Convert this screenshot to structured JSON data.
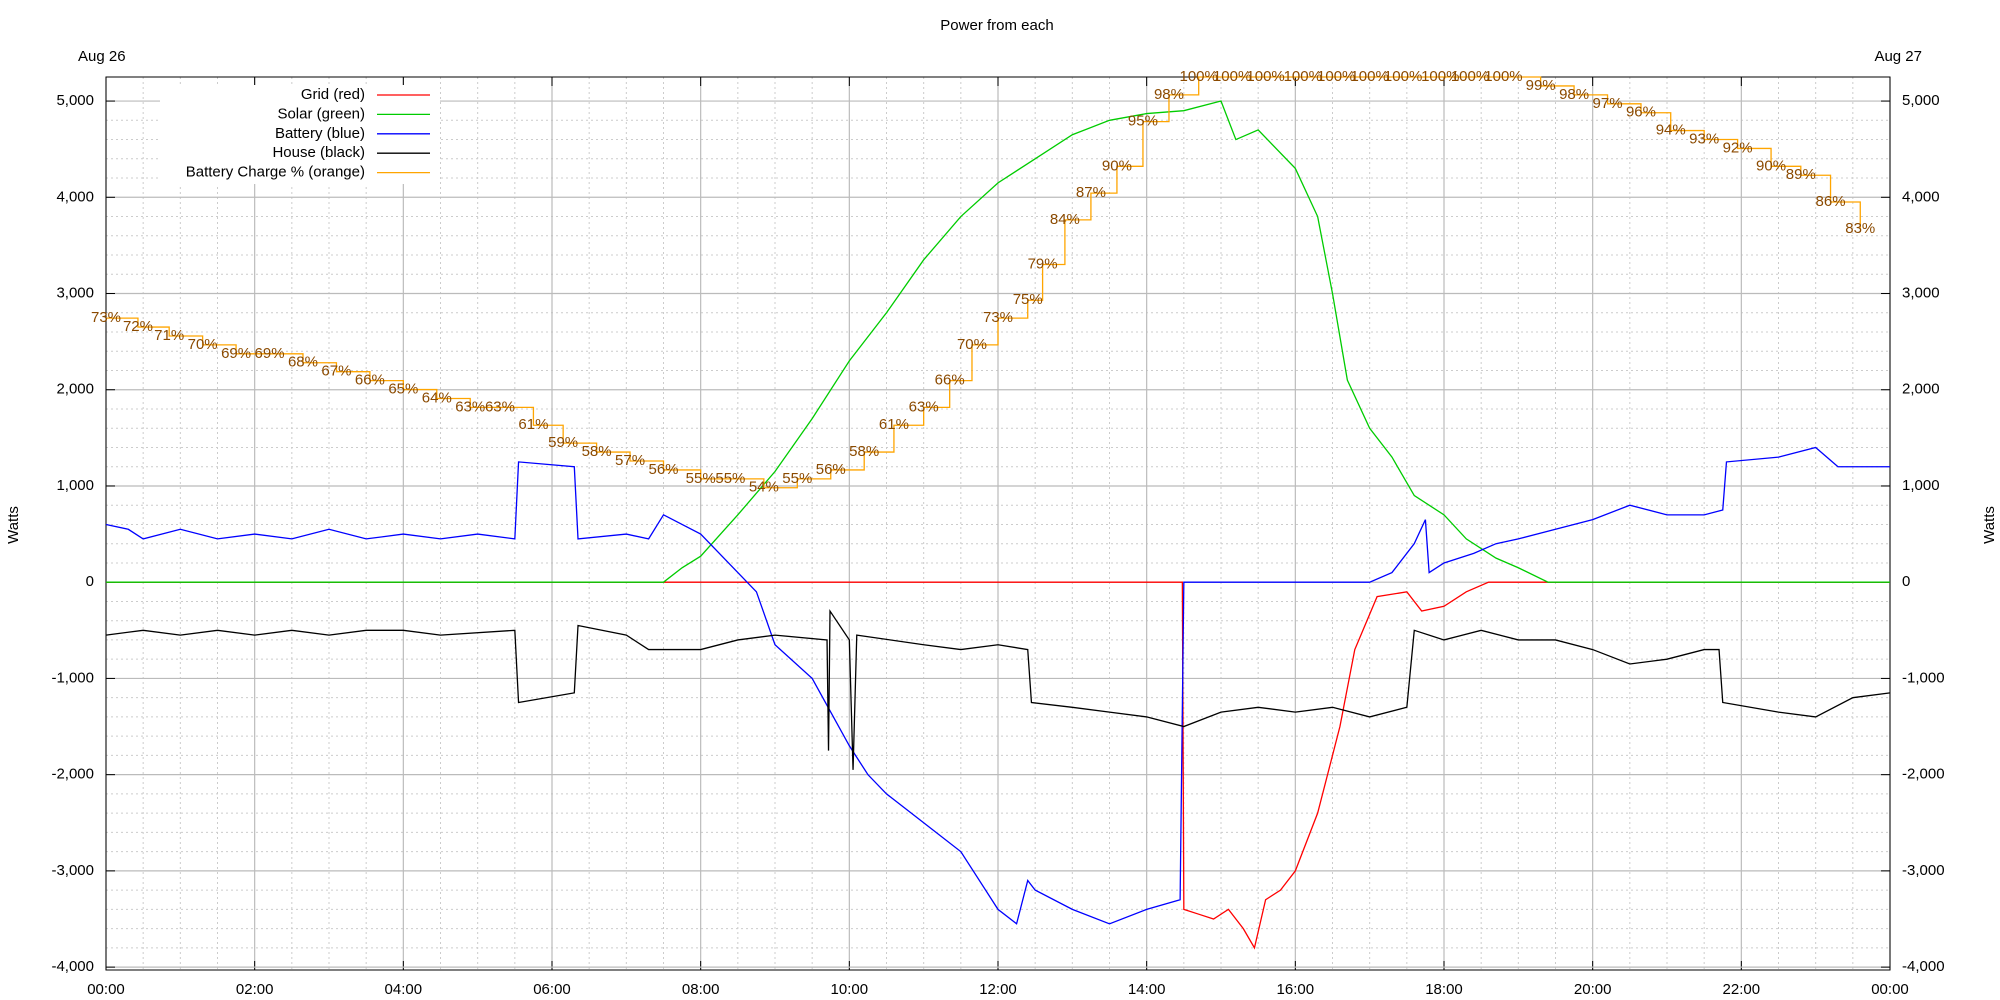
{
  "chart_data": {
    "type": "line",
    "title": "Power from each",
    "date_left": "Aug 26",
    "date_right": "Aug 27",
    "ylabel": "Watts",
    "y2label": "Watts",
    "grid": true,
    "legend": "top-left",
    "xlim": [
      0,
      24
    ],
    "xticks": [
      {
        "value": 0,
        "label": "00:00"
      },
      {
        "value": 2,
        "label": "02:00"
      },
      {
        "value": 4,
        "label": "04:00"
      },
      {
        "value": 6,
        "label": "06:00"
      },
      {
        "value": 8,
        "label": "08:00"
      },
      {
        "value": 10,
        "label": "10:00"
      },
      {
        "value": 12,
        "label": "12:00"
      },
      {
        "value": 14,
        "label": "14:00"
      },
      {
        "value": 16,
        "label": "16:00"
      },
      {
        "value": 18,
        "label": "18:00"
      },
      {
        "value": 20,
        "label": "20:00"
      },
      {
        "value": 22,
        "label": "22:00"
      },
      {
        "value": 24,
        "label": "00:00"
      }
    ],
    "ylim": [
      -4030,
      5250
    ],
    "yticks": [
      {
        "value": -4000,
        "label": "-4,000"
      },
      {
        "value": -3000,
        "label": "-3,000"
      },
      {
        "value": -2000,
        "label": "-2,000"
      },
      {
        "value": -1000,
        "label": "-1,000"
      },
      0,
      {
        "value": 1000,
        "label": "1,000"
      },
      {
        "value": 2000,
        "label": "2,000"
      },
      {
        "value": 3000,
        "label": "3,000"
      },
      {
        "value": 4000,
        "label": "4,000"
      },
      {
        "value": 5000,
        "label": "5,000"
      }
    ],
    "y2lim": [
      -4030,
      5250
    ],
    "y2ticks": [
      {
        "value": -4000,
        "label": "-4,000"
      },
      {
        "value": -3000,
        "label": "-3,000"
      },
      {
        "value": -2000,
        "label": "-2,000"
      },
      {
        "value": -1000,
        "label": "-1,000"
      },
      0,
      {
        "value": 1000,
        "label": "1,000"
      },
      {
        "value": 2000,
        "label": "2,000"
      },
      {
        "value": 3000,
        "label": "3,000"
      },
      {
        "value": 4000,
        "label": "4,000"
      },
      {
        "value": 5000,
        "label": "5,000"
      }
    ],
    "y3lim": [
      0,
      100
    ],
    "series": [
      {
        "name": "Grid (red)",
        "color": "#ff0000",
        "x": [
          0,
          14.48,
          14.5,
          14.7,
          14.9,
          15.1,
          15.3,
          15.45,
          15.6,
          15.8,
          16.0,
          16.3,
          16.6,
          16.8,
          17.1,
          17.5,
          17.7,
          18.0,
          18.3,
          18.6,
          24
        ],
        "values": [
          0,
          0,
          -3400,
          -3450,
          -3500,
          -3400,
          -3600,
          -3800,
          -3300,
          -3200,
          -3000,
          -2400,
          -1500,
          -700,
          -150,
          -100,
          -300,
          -250,
          -100,
          0,
          0
        ]
      },
      {
        "name": "Solar (green)",
        "color": "#00cc00",
        "x": [
          0,
          7.5,
          7.75,
          8.0,
          8.5,
          9.0,
          9.5,
          10.0,
          10.5,
          11.0,
          11.5,
          12.0,
          12.5,
          13.0,
          13.5,
          14.0,
          14.5,
          15.0,
          15.2,
          15.5,
          16.0,
          16.3,
          16.5,
          16.7,
          17.0,
          17.3,
          17.6,
          18.0,
          18.3,
          18.7,
          19.0,
          19.4,
          24
        ],
        "values": [
          0,
          0,
          150,
          270,
          700,
          1150,
          1700,
          2300,
          2800,
          3350,
          3800,
          4150,
          4400,
          4650,
          4800,
          4870,
          4900,
          5000,
          4600,
          4700,
          4300,
          3800,
          3000,
          2100,
          1600,
          1300,
          900,
          700,
          450,
          250,
          150,
          0,
          0
        ]
      },
      {
        "name": "Battery (blue)",
        "color": "#0000ff",
        "x": [
          0,
          0.3,
          0.5,
          1.0,
          1.5,
          2.0,
          2.5,
          3.0,
          3.5,
          4.0,
          4.5,
          5.0,
          5.5,
          5.55,
          6.3,
          6.35,
          7.0,
          7.3,
          7.5,
          8.0,
          8.5,
          8.75,
          9.0,
          9.5,
          10.0,
          10.25,
          10.5,
          11.0,
          11.5,
          12.0,
          12.25,
          12.4,
          12.5,
          13.0,
          13.5,
          14.0,
          14.45,
          14.5,
          17.0,
          17.3,
          17.6,
          17.75,
          17.8,
          18.0,
          18.4,
          18.7,
          19.0,
          19.5,
          20.0,
          20.5,
          21.0,
          21.5,
          21.75,
          21.8,
          22.5,
          23.0,
          23.3,
          24
        ],
        "values": [
          600,
          550,
          450,
          550,
          450,
          500,
          450,
          550,
          450,
          500,
          450,
          500,
          450,
          1250,
          1200,
          450,
          500,
          450,
          700,
          500,
          100,
          -100,
          -650,
          -1000,
          -1700,
          -2000,
          -2200,
          -2500,
          -2800,
          -3400,
          -3550,
          -3100,
          -3200,
          -3400,
          -3550,
          -3400,
          -3300,
          0,
          0,
          100,
          400,
          650,
          100,
          200,
          300,
          400,
          450,
          550,
          650,
          800,
          700,
          700,
          750,
          1250,
          1300,
          1400,
          1200,
          1200
        ]
      },
      {
        "name": "House (black)",
        "color": "#000000",
        "x": [
          0,
          0.5,
          1.0,
          1.5,
          2.0,
          2.5,
          3.0,
          3.5,
          4.0,
          4.5,
          5.5,
          5.55,
          6.3,
          6.35,
          7.0,
          7.3,
          8.0,
          8.5,
          9.0,
          9.7,
          9.72,
          9.74,
          10.0,
          10.05,
          10.1,
          11.0,
          11.5,
          12.0,
          12.4,
          12.45,
          13.0,
          13.5,
          14.0,
          14.5,
          15.0,
          15.5,
          16.0,
          16.5,
          17.0,
          17.5,
          17.6,
          18.0,
          18.5,
          19.0,
          19.5,
          20.0,
          20.5,
          21.0,
          21.5,
          21.7,
          21.75,
          22.5,
          23.0,
          23.5,
          24
        ],
        "values": [
          -550,
          -500,
          -550,
          -500,
          -550,
          -500,
          -550,
          -500,
          -500,
          -550,
          -500,
          -1250,
          -1150,
          -450,
          -550,
          -700,
          -700,
          -600,
          -550,
          -600,
          -1750,
          -300,
          -600,
          -1950,
          -550,
          -650,
          -700,
          -650,
          -700,
          -1250,
          -1300,
          -1350,
          -1400,
          -1500,
          -1350,
          -1300,
          -1350,
          -1300,
          -1400,
          -1300,
          -500,
          -600,
          -500,
          -600,
          -600,
          -700,
          -850,
          -800,
          -700,
          -700,
          -1250,
          -1350,
          -1400,
          -1200,
          -1150
        ]
      },
      {
        "name": "Battery Charge % (orange)",
        "color": "#ffa500",
        "axis": "y3",
        "step": true,
        "x": [
          0,
          0.43,
          0.85,
          1.3,
          1.75,
          2.2,
          2.65,
          3.1,
          3.55,
          4.0,
          4.45,
          4.9,
          5.3,
          5.75,
          6.15,
          6.6,
          7.05,
          7.5,
          8.0,
          8.4,
          8.85,
          9.3,
          9.75,
          10.2,
          10.6,
          11.0,
          11.35,
          11.65,
          12.0,
          12.4,
          12.6,
          12.9,
          13.25,
          13.6,
          13.95,
          14.3,
          14.7,
          15.15,
          15.6,
          16.1,
          16.55,
          17.0,
          17.45,
          17.95,
          18.35,
          18.8,
          19.3,
          19.75,
          20.2,
          20.65,
          21.05,
          21.5,
          21.95,
          22.4,
          22.8,
          23.2,
          23.6
        ],
        "values": [
          73,
          72,
          71,
          70,
          69,
          69,
          68,
          67,
          66,
          65,
          64,
          63,
          63,
          61,
          59,
          58,
          57,
          56,
          55,
          55,
          54,
          55,
          56,
          58,
          61,
          63,
          66,
          70,
          73,
          75,
          79,
          84,
          87,
          90,
          95,
          98,
          100,
          100,
          100,
          100,
          100,
          100,
          100,
          100,
          100,
          100,
          99,
          98,
          97,
          96,
          94,
          93,
          92,
          90,
          89,
          86,
          83
        ],
        "value_labels": [
          "73%",
          "72%",
          "71%",
          "70%",
          "69%",
          "69%",
          "68%",
          "67%",
          "66%",
          "65%",
          "64%",
          "63%",
          "63%",
          "61%",
          "59%",
          "58%",
          "57%",
          "56%",
          "55%",
          "55%",
          "54%",
          "55%",
          "56%",
          "58%",
          "61%",
          "63%",
          "66%",
          "70%",
          "73%",
          "75%",
          "79%",
          "84%",
          "87%",
          "90%",
          "95%",
          "98%",
          "100%",
          "100%",
          "100%",
          "100%",
          "100%",
          "100%",
          "100%",
          "100%",
          "100%",
          "100%",
          "99%",
          "98%",
          "97%",
          "96%",
          "94%",
          "93%",
          "92%",
          "90%",
          "89%",
          "86%",
          "83%"
        ]
      }
    ]
  }
}
